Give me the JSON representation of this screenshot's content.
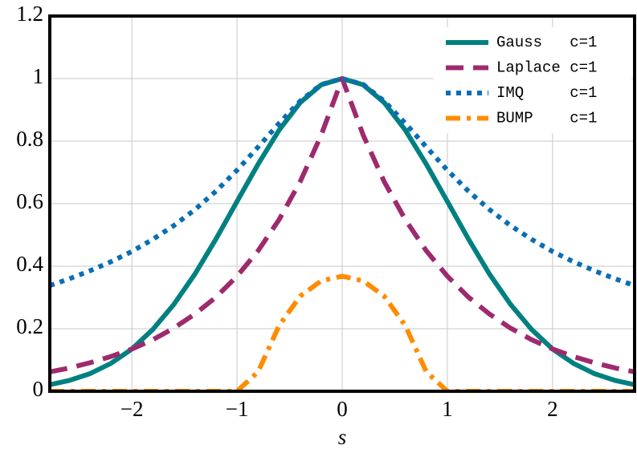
{
  "chart_data": {
    "type": "line",
    "xlabel": "s",
    "xlim": [
      -2.78,
      2.78
    ],
    "ylim": [
      0,
      1.2
    ],
    "xticks": [
      {
        "value": -2,
        "label": "−2"
      },
      {
        "value": -1,
        "label": "−1"
      },
      0,
      1,
      2
    ],
    "yticks": [
      0,
      0.2,
      0.4,
      0.6,
      0.8,
      1,
      1.2
    ],
    "grid": true,
    "legend": "upper right",
    "x": [
      -2.78,
      -2.6,
      -2.4,
      -2.2,
      -2.0,
      -1.8,
      -1.6,
      -1.4,
      -1.2,
      -1.0,
      -0.8,
      -0.6,
      -0.4,
      -0.2,
      0,
      0.2,
      0.4,
      0.6,
      0.8,
      1.0,
      1.2,
      1.4,
      1.6,
      1.8,
      2.0,
      2.2,
      2.4,
      2.6,
      2.78
    ],
    "series": [
      {
        "name": "Gauss   c=1",
        "color": "#008080",
        "style": "solid",
        "values": [
          0.021,
          0.034,
          0.056,
          0.089,
          0.135,
          0.198,
          0.278,
          0.375,
          0.487,
          0.607,
          0.726,
          0.835,
          0.923,
          0.98,
          1,
          0.98,
          0.923,
          0.835,
          0.726,
          0.607,
          0.487,
          0.375,
          0.278,
          0.198,
          0.135,
          0.089,
          0.056,
          0.034,
          0.021
        ]
      },
      {
        "name": "Laplace c=1",
        "color": "#9e2a6e",
        "style": "dashed",
        "values": [
          0.062,
          0.074,
          0.091,
          0.111,
          0.135,
          0.165,
          0.202,
          0.247,
          0.301,
          0.368,
          0.449,
          0.549,
          0.67,
          0.819,
          1,
          0.819,
          0.67,
          0.549,
          0.449,
          0.368,
          0.301,
          0.247,
          0.202,
          0.165,
          0.135,
          0.111,
          0.091,
          0.074,
          0.062
        ]
      },
      {
        "name": "IMQ     c=1",
        "color": "#0a6eb4",
        "style": "dotted",
        "values": [
          0.338,
          0.359,
          0.385,
          0.414,
          0.447,
          0.486,
          0.53,
          0.581,
          0.64,
          0.707,
          0.781,
          0.857,
          0.928,
          0.981,
          1,
          0.981,
          0.928,
          0.857,
          0.781,
          0.707,
          0.64,
          0.581,
          0.53,
          0.486,
          0.447,
          0.414,
          0.385,
          0.359,
          0.338
        ]
      },
      {
        "name": "BUMP    c=1",
        "color": "#ff8c00",
        "style": "dashdot",
        "values": [
          0,
          0,
          0,
          0,
          0,
          0,
          0,
          0,
          0,
          0,
          0.062,
          0.21,
          0.304,
          0.353,
          0.368,
          0.353,
          0.304,
          0.21,
          0.062,
          0,
          0,
          0,
          0,
          0,
          0,
          0,
          0,
          0,
          0
        ]
      }
    ]
  }
}
